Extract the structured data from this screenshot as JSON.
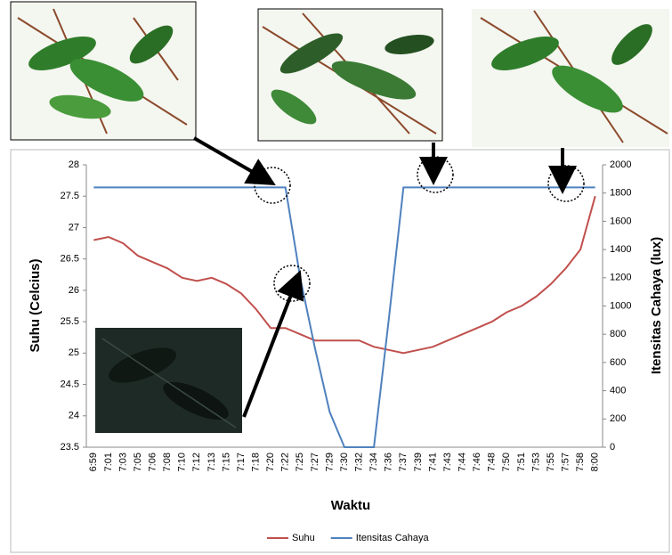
{
  "chart_data": {
    "type": "line",
    "x_label": "Waktu",
    "y_label": "Suhu (Celcius)",
    "y2_label": "Itensitas Cahaya (lux)",
    "categories": [
      "6:59",
      "7:01",
      "7:03",
      "7:05",
      "7:06",
      "7:08",
      "7:10",
      "7:12",
      "7:13",
      "7:15",
      "7:17",
      "7:18",
      "7:20",
      "7:22",
      "7:25",
      "7:27",
      "7:29",
      "7:30",
      "7:32",
      "7:34",
      "7:36",
      "7:37",
      "7:39",
      "7:41",
      "7:43",
      "7:44",
      "7:46",
      "7:48",
      "7:50",
      "7:51",
      "7:53",
      "7:55",
      "7:57",
      "7:58",
      "8:00"
    ],
    "series": [
      {
        "name": "Suhu",
        "color": "#c0504d",
        "values": [
          26.8,
          26.85,
          26.75,
          26.55,
          26.45,
          26.35,
          26.2,
          26.15,
          26.2,
          26.1,
          25.95,
          25.7,
          25.4,
          25.4,
          25.3,
          25.2,
          25.2,
          25.2,
          25.2,
          25.1,
          25.05,
          25.0,
          25.05,
          25.1,
          25.2,
          25.3,
          25.4,
          25.5,
          25.65,
          25.75,
          25.9,
          26.1,
          26.35,
          26.65,
          27.5
        ]
      },
      {
        "name": "Itensitas Cahaya",
        "color": "#4f81bd",
        "axis": "y2",
        "values": [
          1840,
          1840,
          1840,
          1840,
          1840,
          1840,
          1840,
          1840,
          1840,
          1840,
          1840,
          1840,
          1840,
          1840,
          1200,
          700,
          250,
          0,
          0,
          0,
          900,
          1840,
          1840,
          1840,
          1840,
          1840,
          1840,
          1840,
          1840,
          1840,
          1840,
          1840,
          1840,
          1840,
          1840
        ]
      }
    ],
    "ylim": [
      23.5,
      28
    ],
    "yticks": [
      23.5,
      24,
      24.5,
      25,
      25.5,
      26,
      26.5,
      27,
      27.5,
      28
    ],
    "y2lim": [
      0,
      2000
    ],
    "y2ticks": [
      0,
      200,
      400,
      600,
      800,
      1000,
      1200,
      1400,
      1600,
      1800,
      2000
    ],
    "legend": "bottom"
  }
}
